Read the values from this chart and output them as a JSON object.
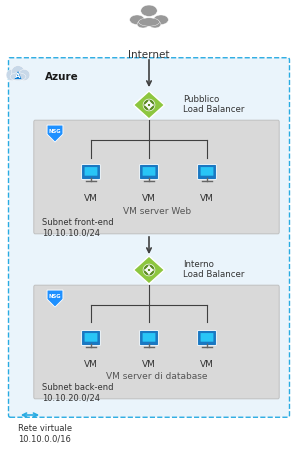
{
  "title": "Internet",
  "azure_label": "Azure",
  "bg_color": "#ffffff",
  "outer_box_color": "#29ABE2",
  "subnet_box_color": "#D9D9D9",
  "arrow_color": "#404040",
  "lb1_label": "Pubblico\nLoad Balancer",
  "lb2_label": "Interno\nLoad Balancer",
  "vm_label": "VM",
  "subnet1_label": "Subnet front-end\n10.10.10.0/24",
  "subnet2_label": "Subnet back-end\n10.10.20.0/24",
  "vnet_label": "Rete virtuale\n10.10.0.0/16",
  "vm_group1_label": "VM server Web",
  "vm_group2_label": "VM server di database",
  "cloud_color": "#888888",
  "lb_color": "#8DC63F",
  "lb_inner_color": "#5A8A20",
  "nsg_color": "#1E90FF",
  "vm_body_color": "#1A78C2",
  "vm_screen_color": "#29C5F6",
  "vm_stand_color": "#666666"
}
